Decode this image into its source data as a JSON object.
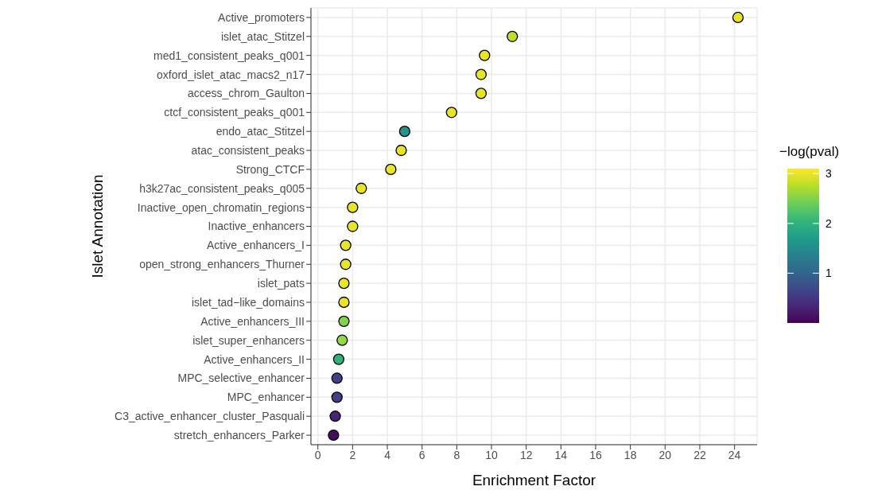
{
  "chart_data": {
    "type": "scatter",
    "xlabel": "Enrichment Factor",
    "ylabel": "Islet Annotation",
    "clabel": "−log(pval)",
    "categories": [
      "Active_promoters",
      "islet_atac_Stitzel",
      "med1_consistent_peaks_q001",
      "oxford_islet_atac_macs2_n17",
      "access_chrom_Gaulton",
      "ctcf_consistent_peaks_q001",
      "endo_atac_Stitzel",
      "atac_consistent_peaks",
      "Strong_CTCF",
      "h3k27ac_consistent_peaks_q005",
      "Inactive_open_chromatin_regions",
      "Inactive_enhancers",
      "Active_enhancers_I",
      "open_strong_enhancers_Thurner",
      "islet_pats",
      "islet_tad−like_domains",
      "Active_enhancers_III",
      "islet_super_enhancers",
      "Active_enhancers_II",
      "MPC_selective_enhancer",
      "MPC_enhancer",
      "C3_active_enhancer_cluster_Pasquali",
      "stretch_enhancers_Parker"
    ],
    "values": [
      24.2,
      11.2,
      9.6,
      9.4,
      9.4,
      7.7,
      5.0,
      4.8,
      4.2,
      2.5,
      2.0,
      2.0,
      1.6,
      1.6,
      1.5,
      1.5,
      1.5,
      1.4,
      1.2,
      1.1,
      1.1,
      1.0,
      0.9
    ],
    "cvalues": [
      3.0,
      2.8,
      3.0,
      3.0,
      3.0,
      3.0,
      1.6,
      3.0,
      3.0,
      3.0,
      3.0,
      3.0,
      3.0,
      3.0,
      3.0,
      3.0,
      2.5,
      2.6,
      2.0,
      0.6,
      0.6,
      0.3,
      0.1
    ],
    "clim": [
      0,
      3.1
    ],
    "cticks": [
      1,
      2,
      3
    ],
    "xlim": [
      -0.4,
      25.3
    ],
    "xticks": [
      0,
      2,
      4,
      6,
      8,
      10,
      12,
      14,
      16,
      18,
      20,
      22,
      24
    ],
    "grid": true,
    "marker": "circle",
    "orientation": "horizontal"
  }
}
